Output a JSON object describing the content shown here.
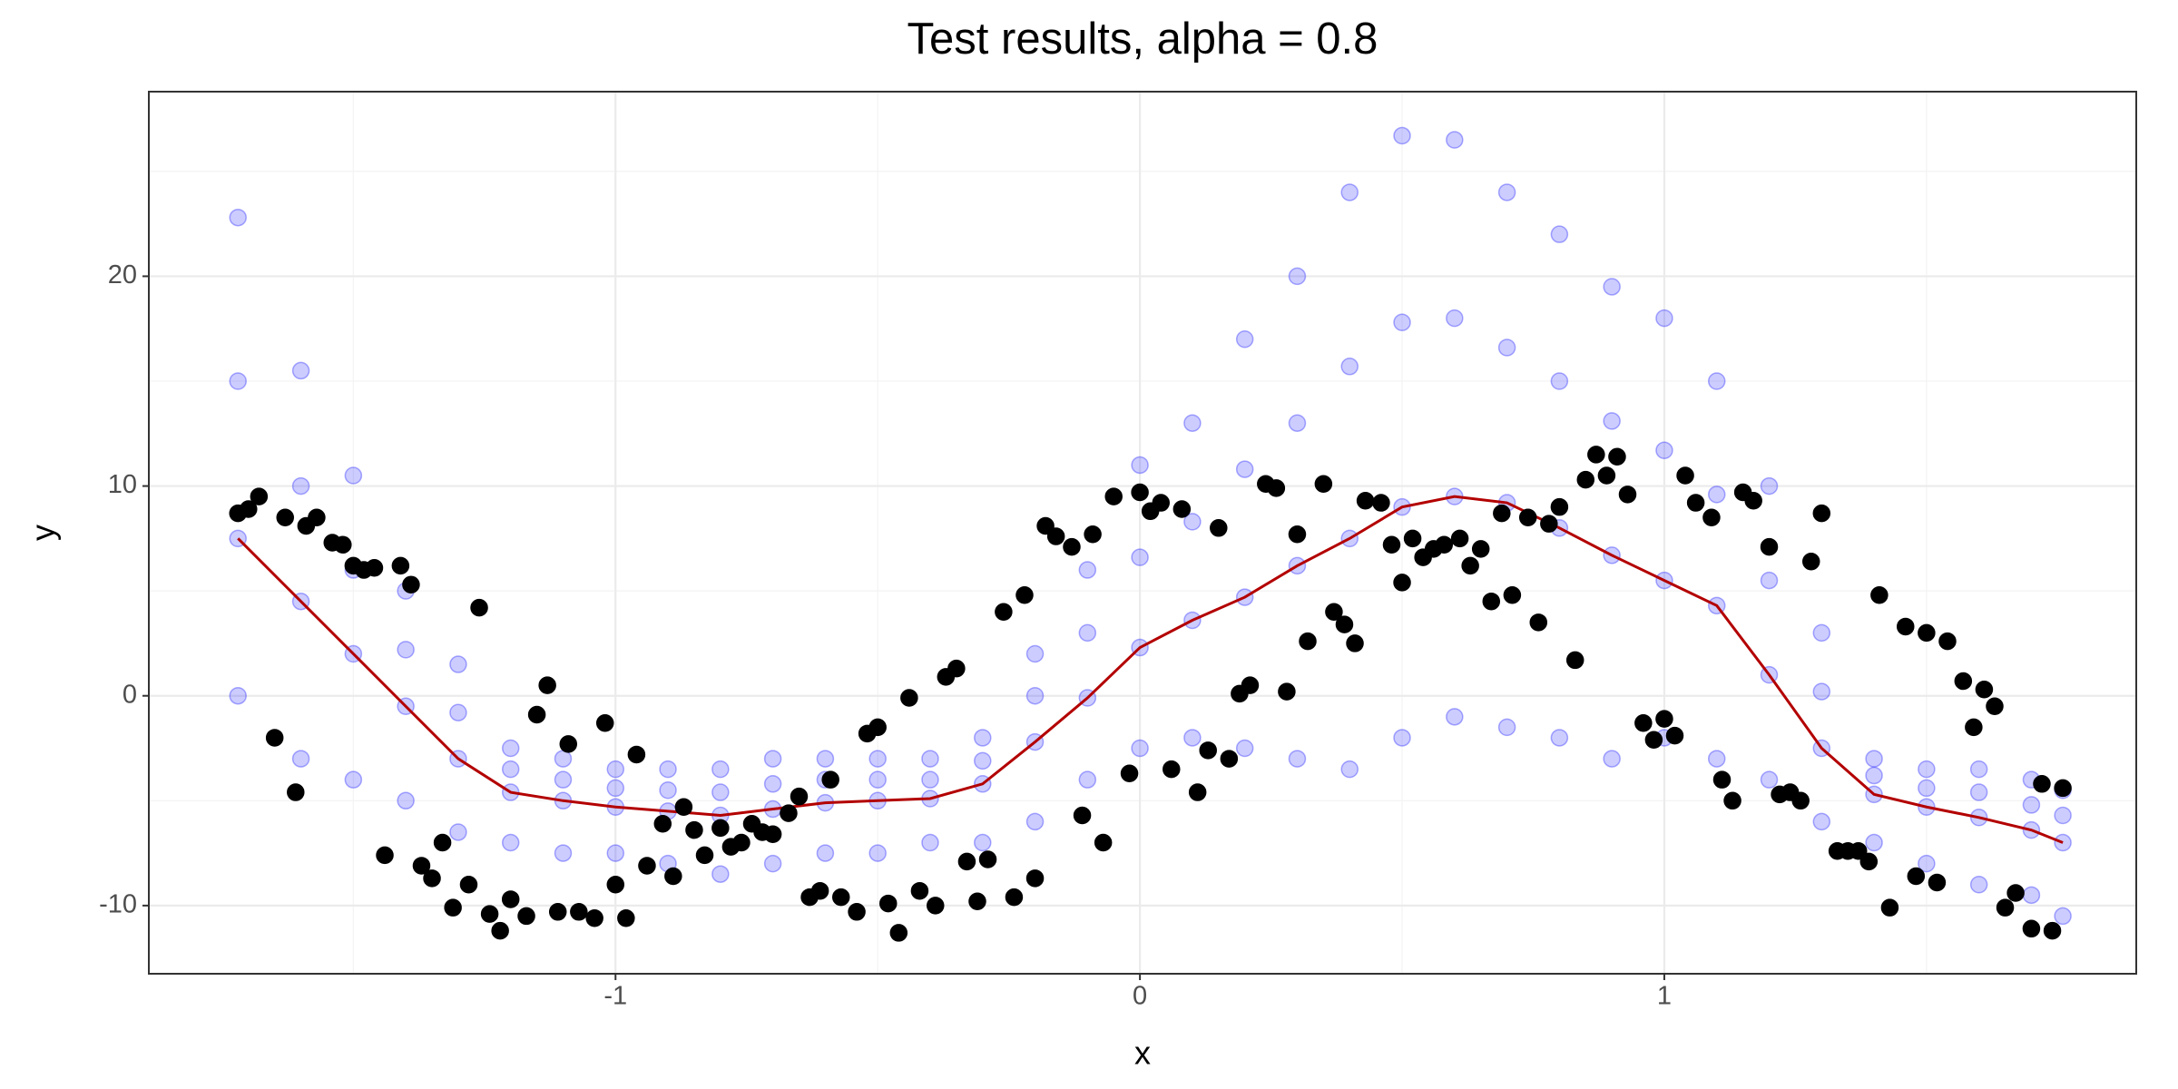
{
  "chart_data": {
    "type": "scatter",
    "title": "Test results, alpha = 0.8",
    "x_label": "x",
    "y_label": "y",
    "xlim": [
      -1.89,
      1.9
    ],
    "ylim": [
      -13.25,
      28.8
    ],
    "xticks": [
      -1,
      0,
      1
    ],
    "yticks": [
      -10,
      0,
      10,
      20
    ],
    "xminor": [
      -1.5,
      -0.5,
      0.5,
      1.5
    ],
    "yminor": [
      -5,
      5,
      15,
      25
    ],
    "grid": true,
    "series": [
      {
        "type": "points",
        "color": "#0000ff",
        "opacity": 0.2,
        "x": [
          -1.72,
          -1.72,
          -1.72,
          -1.72,
          -1.6,
          -1.6,
          -1.6,
          -1.6,
          -1.5,
          -1.5,
          -1.5,
          -1.5,
          -1.4,
          -1.4,
          -1.4,
          -1.4,
          -1.3,
          -1.3,
          -1.3,
          -1.3,
          -1.2,
          -1.2,
          -1.2,
          -1.2,
          -1.1,
          -1.1,
          -1.1,
          -1.1,
          -1,
          -1,
          -1,
          -1,
          -0.9,
          -0.9,
          -0.9,
          -0.9,
          -0.8,
          -0.8,
          -0.8,
          -0.8,
          -0.7,
          -0.7,
          -0.7,
          -0.7,
          -0.6,
          -0.6,
          -0.6,
          -0.6,
          -0.5,
          -0.5,
          -0.5,
          -0.5,
          -0.4,
          -0.4,
          -0.4,
          -0.4,
          -0.3,
          -0.3,
          -0.3,
          -0.3,
          -0.2,
          -0.2,
          -0.2,
          -0.2,
          -0.1,
          -0.1,
          -0.1,
          -0.1,
          0,
          0,
          0,
          0,
          0.1,
          0.1,
          0.1,
          0.1,
          0.2,
          0.2,
          0.2,
          0.2,
          0.3,
          0.3,
          0.3,
          0.3,
          0.4,
          0.4,
          0.4,
          0.4,
          0.5,
          0.5,
          0.5,
          0.5,
          0.6,
          0.6,
          0.6,
          0.6,
          0.7,
          0.7,
          0.7,
          0.7,
          0.8,
          0.8,
          0.8,
          0.8,
          0.9,
          0.9,
          0.9,
          0.9,
          1,
          1,
          1,
          1,
          1.1,
          1.1,
          1.1,
          1.1,
          1.2,
          1.2,
          1.2,
          1.2,
          1.3,
          1.3,
          1.3,
          1.3,
          1.4,
          1.4,
          1.4,
          1.4,
          1.5,
          1.5,
          1.5,
          1.5,
          1.6,
          1.6,
          1.6,
          1.6,
          1.7,
          1.7,
          1.7,
          1.7,
          1.76,
          1.76,
          1.76,
          1.76
        ],
        "values": [
          0,
          7.5,
          15,
          22.8,
          -3,
          4.5,
          10,
          15.5,
          -4,
          2,
          6,
          10.5,
          -5,
          -0.5,
          2.2,
          5,
          -6.5,
          -3,
          -0.8,
          1.5,
          -7,
          -4.6,
          -3.5,
          -2.5,
          -7.5,
          -5,
          -4,
          -3,
          -7.5,
          -5.3,
          -4.4,
          -3.5,
          -8,
          -5.5,
          -4.5,
          -3.5,
          -8.5,
          -5.7,
          -4.6,
          -3.5,
          -8,
          -5.4,
          -4.2,
          -3,
          -7.5,
          -5.1,
          -4,
          -3,
          -7.5,
          -5,
          -4,
          -3,
          -7,
          -4.9,
          -4,
          -3,
          -7,
          -4.2,
          -3.1,
          -2,
          -6,
          -2.2,
          0,
          2,
          -4,
          -0.1,
          3,
          6,
          -2.5,
          2.3,
          6.6,
          11,
          -2,
          3.6,
          8.3,
          13,
          -2.5,
          4.7,
          10.8,
          17,
          -3,
          6.2,
          13,
          20,
          -3.5,
          7.5,
          15.7,
          24,
          -2,
          9,
          17.8,
          26.7,
          -1,
          9.5,
          18,
          26.5,
          -1.5,
          9.2,
          16.6,
          24,
          -2,
          8,
          15,
          22,
          -3,
          6.7,
          13.1,
          19.5,
          -2,
          5.5,
          11.7,
          18,
          -3,
          4.3,
          9.6,
          15,
          -4,
          1,
          5.5,
          10,
          -6,
          -2.5,
          0.2,
          3,
          -7,
          -4.7,
          -3.8,
          -3,
          -8,
          -5.3,
          -4.4,
          -3.5,
          -9,
          -5.8,
          -4.6,
          -3.5,
          -9.5,
          -6.4,
          -5.2,
          -4,
          -10.5,
          -7,
          -5.7,
          -4.5
        ]
      },
      {
        "type": "line",
        "color": "#b30000",
        "x": [
          -1.72,
          -1.6,
          -1.5,
          -1.4,
          -1.3,
          -1.2,
          -1.1,
          -1,
          -0.9,
          -0.8,
          -0.7,
          -0.6,
          -0.5,
          -0.4,
          -0.3,
          -0.2,
          -0.1,
          0,
          0.1,
          0.2,
          0.3,
          0.4,
          0.5,
          0.6,
          0.7,
          0.8,
          0.9,
          1,
          1.1,
          1.2,
          1.3,
          1.4,
          1.5,
          1.6,
          1.7,
          1.76
        ],
        "values": [
          7.5,
          4.5,
          2,
          -0.5,
          -3,
          -4.6,
          -5,
          -5.3,
          -5.5,
          -5.7,
          -5.4,
          -5.1,
          -5,
          -4.9,
          -4.2,
          -2.2,
          -0.1,
          2.3,
          3.6,
          4.7,
          6.2,
          7.5,
          9,
          9.5,
          9.2,
          8,
          6.7,
          5.5,
          4.3,
          1,
          -2.5,
          -4.7,
          -5.3,
          -5.8,
          -6.4,
          -7
        ]
      },
      {
        "type": "points",
        "color": "#000000",
        "opacity": 1,
        "x": [
          -1.72,
          -1.7,
          -1.68,
          -1.65,
          -1.63,
          -1.61,
          -1.59,
          -1.57,
          -1.54,
          -1.52,
          -1.5,
          -1.48,
          -1.46,
          -1.44,
          -1.41,
          -1.39,
          -1.37,
          -1.35,
          -1.33,
          -1.31,
          -1.28,
          -1.26,
          -1.24,
          -1.22,
          -1.2,
          -1.17,
          -1.15,
          -1.13,
          -1.11,
          -1.09,
          -1.07,
          -1.04,
          -1.02,
          -1.0,
          -0.98,
          -0.96,
          -0.94,
          -0.91,
          -0.89,
          -0.87,
          -0.85,
          -0.83,
          -0.8,
          -0.78,
          -0.76,
          -0.74,
          -0.72,
          -0.7,
          -0.67,
          -0.65,
          -0.63,
          -0.61,
          -0.59,
          -0.57,
          -0.54,
          -0.52,
          -0.5,
          -0.48,
          -0.46,
          -0.44,
          -0.42,
          -0.39,
          -0.37,
          -0.35,
          -0.33,
          -0.31,
          -0.29,
          -0.26,
          -0.24,
          -0.22,
          -0.2,
          -0.18,
          -0.16,
          -0.13,
          -0.11,
          -0.09,
          -0.07,
          -0.05,
          -0.02,
          0,
          0.02,
          0.04,
          0.06,
          0.08,
          0.11,
          0.13,
          0.15,
          0.17,
          0.19,
          0.21,
          0.24,
          0.26,
          0.28,
          0.3,
          0.32,
          0.35,
          0.37,
          0.39,
          0.41,
          0.43,
          0.46,
          0.48,
          0.5,
          0.52,
          0.54,
          0.56,
          0.58,
          0.61,
          0.63,
          0.65,
          0.67,
          0.69,
          0.71,
          0.74,
          0.76,
          0.78,
          0.8,
          0.83,
          0.85,
          0.87,
          0.89,
          0.91,
          0.93,
          0.96,
          0.98,
          1.0,
          1.02,
          1.04,
          1.06,
          1.09,
          1.11,
          1.13,
          1.15,
          1.17,
          1.2,
          1.22,
          1.24,
          1.26,
          1.28,
          1.3,
          1.33,
          1.35,
          1.37,
          1.39,
          1.41,
          1.43,
          1.46,
          1.48,
          1.5,
          1.52,
          1.54,
          1.57,
          1.59,
          1.61,
          1.63,
          1.65,
          1.67,
          1.7,
          1.72,
          1.74,
          1.76
        ],
        "values": [
          8.7,
          8.9,
          9.5,
          -2.0,
          8.5,
          -4.6,
          8.1,
          8.5,
          7.3,
          7.2,
          6.2,
          6.0,
          6.1,
          -7.6,
          6.2,
          5.3,
          -8.1,
          -8.7,
          -7.0,
          -10.1,
          -9.0,
          4.2,
          -10.4,
          -11.2,
          -9.7,
          -10.5,
          -0.9,
          0.5,
          -10.3,
          -2.3,
          -10.3,
          -10.6,
          -1.3,
          -9.0,
          -10.6,
          -2.8,
          -8.1,
          -6.1,
          -8.6,
          -5.3,
          -6.4,
          -7.6,
          -6.3,
          -7.2,
          -7.0,
          -6.1,
          -6.5,
          -6.6,
          -5.6,
          -4.8,
          -9.6,
          -9.3,
          -4.0,
          -9.6,
          -10.3,
          -1.8,
          -1.5,
          -9.9,
          -11.3,
          -0.1,
          -9.3,
          -10.0,
          0.9,
          1.3,
          -7.9,
          -9.8,
          -7.8,
          4.0,
          -9.6,
          4.8,
          -8.7,
          8.1,
          7.6,
          7.1,
          -5.7,
          7.7,
          -7.0,
          9.5,
          -3.7,
          9.7,
          8.8,
          9.2,
          -3.5,
          8.9,
          -4.6,
          -2.6,
          8.0,
          -3.0,
          0.1,
          0.5,
          10.1,
          9.9,
          0.2,
          7.7,
          2.6,
          10.1,
          4.0,
          3.4,
          2.5,
          9.3,
          9.2,
          7.2,
          5.4,
          7.5,
          6.6,
          7.0,
          7.2,
          7.5,
          6.2,
          7.0,
          4.5,
          8.7,
          4.8,
          8.5,
          3.5,
          8.2,
          9.0,
          1.7,
          10.3,
          11.5,
          10.5,
          11.4,
          9.6,
          -1.3,
          -2.1,
          -1.1,
          -1.9,
          10.5,
          9.2,
          8.5,
          -4.0,
          -5.0,
          9.7,
          9.3,
          7.1,
          -4.7,
          -4.6,
          -5.0,
          6.4,
          8.7,
          -7.4,
          -7.4,
          -7.4,
          -7.9,
          4.8,
          -10.1,
          3.3,
          -8.6,
          3.0,
          -8.9,
          2.6,
          0.7,
          -1.5,
          0.3,
          -0.5,
          -10.1,
          -9.4,
          -11.1,
          -4.2,
          -11.2,
          -4.4
        ]
      }
    ]
  }
}
